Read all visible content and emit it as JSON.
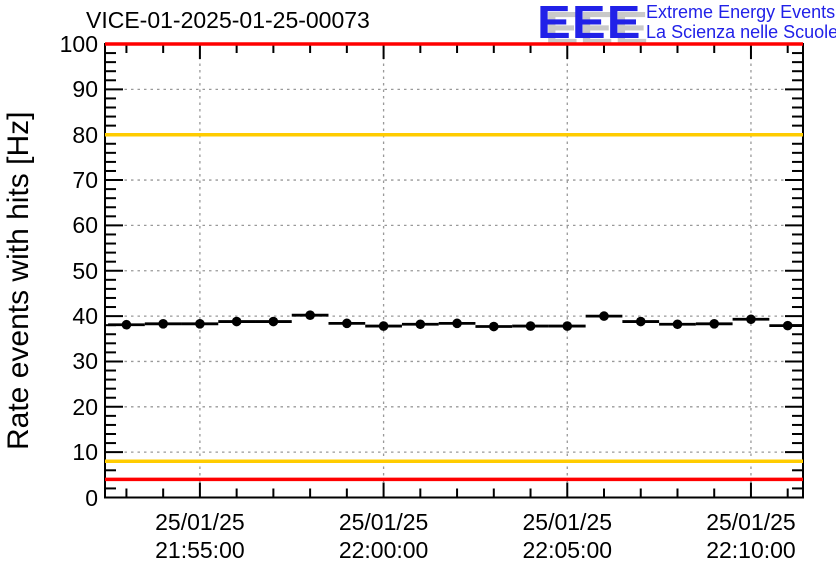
{
  "header": {
    "title": "VICE-01-2025-01-25-00073",
    "logo": {
      "eee": "EEE",
      "line1": "Extreme Energy Events",
      "line2": "La Scienza nelle Scuole",
      "color": "#2121e8",
      "shadow_color": "#c9c9c9"
    }
  },
  "chart_data": {
    "type": "scatter",
    "title": "VICE-01-2025-01-25-00073",
    "xlabel": "",
    "ylabel": "Rate events with hits [Hz]",
    "ylim": [
      0,
      100
    ],
    "y_major_step": 10,
    "y_minor_step": 2,
    "grid": true,
    "legend": "none",
    "x_range": [
      "21:52:25",
      "22:11:25"
    ],
    "x_minor_step_minutes": 1,
    "x_major_ticks": [
      {
        "date": "25/01/25",
        "time": "21:55:00"
      },
      {
        "date": "25/01/25",
        "time": "22:00:00"
      },
      {
        "date": "25/01/25",
        "time": "22:05:00"
      },
      {
        "date": "25/01/25",
        "time": "22:10:00"
      }
    ],
    "bin_width_minutes": 1,
    "points": [
      {
        "time": "21:53:00",
        "value": 38.1
      },
      {
        "time": "21:54:00",
        "value": 38.3
      },
      {
        "time": "21:55:00",
        "value": 38.3
      },
      {
        "time": "21:56:00",
        "value": 38.8
      },
      {
        "time": "21:57:00",
        "value": 38.8
      },
      {
        "time": "21:58:00",
        "value": 40.2
      },
      {
        "time": "21:59:00",
        "value": 38.4
      },
      {
        "time": "22:00:00",
        "value": 37.8
      },
      {
        "time": "22:01:00",
        "value": 38.2
      },
      {
        "time": "22:02:00",
        "value": 38.4
      },
      {
        "time": "22:03:00",
        "value": 37.7
      },
      {
        "time": "22:04:00",
        "value": 37.8
      },
      {
        "time": "22:05:00",
        "value": 37.8
      },
      {
        "time": "22:06:00",
        "value": 40.0
      },
      {
        "time": "22:07:00",
        "value": 38.8
      },
      {
        "time": "22:08:00",
        "value": 38.2
      },
      {
        "time": "22:09:00",
        "value": 38.3
      },
      {
        "time": "22:10:00",
        "value": 39.3
      },
      {
        "time": "22:11:00",
        "value": 37.9
      }
    ],
    "thresholds": [
      {
        "value": 100,
        "color": "#ff0000",
        "name": "rate-max-error"
      },
      {
        "value": 80,
        "color": "#ffcc00",
        "name": "rate-max-warning"
      },
      {
        "value": 8,
        "color": "#ffcc00",
        "name": "rate-min-warning"
      },
      {
        "value": 4,
        "color": "#ff0000",
        "name": "rate-min-error"
      }
    ],
    "colors": {
      "marker": "#000000",
      "frame": "#000000",
      "grid": "#999999",
      "background": "#ffffff"
    }
  }
}
